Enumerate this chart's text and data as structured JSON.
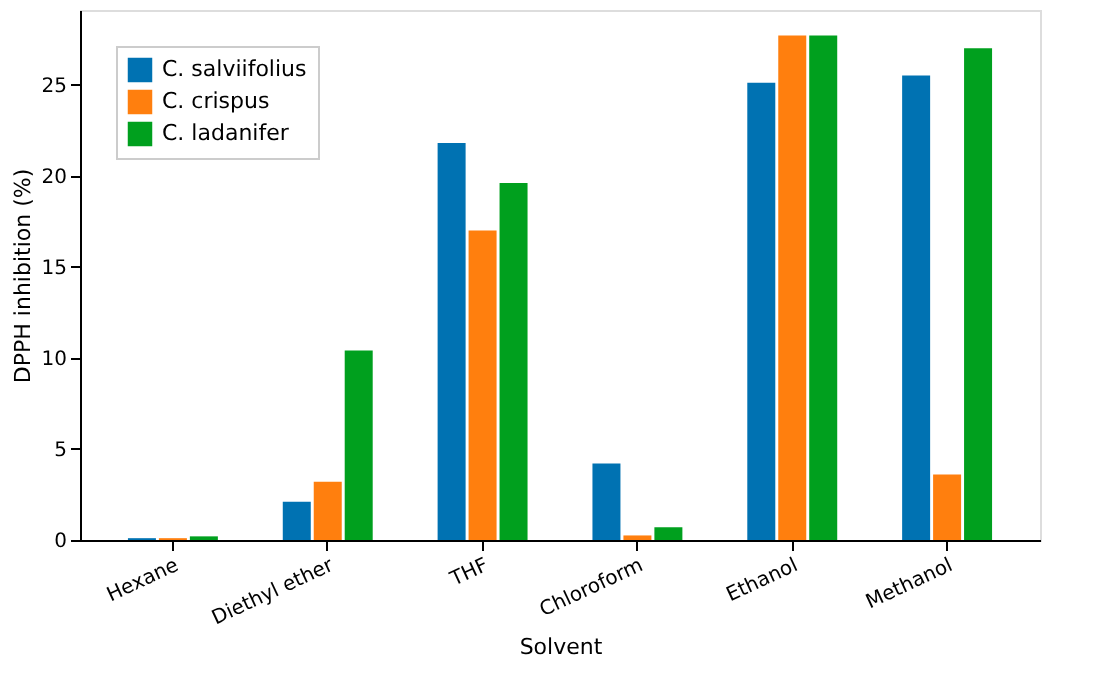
{
  "chart_data": {
    "type": "bar",
    "xlabel": "Solvent",
    "ylabel": "DPPH inhibition (%)",
    "categories": [
      "Hexane",
      "Diethyl ether",
      "THF",
      "Chloroform",
      "Ethanol",
      "Methanol"
    ],
    "series": [
      {
        "name": "C. salviifolius",
        "color": "#0072b2",
        "values": [
          0.1,
          2.1,
          21.8,
          4.2,
          25.1,
          25.5
        ]
      },
      {
        "name": "C. crispus",
        "color": "#ff7f0e",
        "values": [
          0.1,
          3.2,
          17.0,
          0.25,
          27.7,
          3.6
        ]
      },
      {
        "name": "C. ladanifer",
        "color": "#00a01e",
        "values": [
          0.2,
          10.4,
          19.6,
          0.7,
          27.7,
          27.0
        ]
      }
    ],
    "ylim": [
      0,
      29.1
    ],
    "yticks": [
      0,
      5,
      10,
      15,
      20,
      25
    ],
    "grid": false,
    "legend": "top left"
  }
}
